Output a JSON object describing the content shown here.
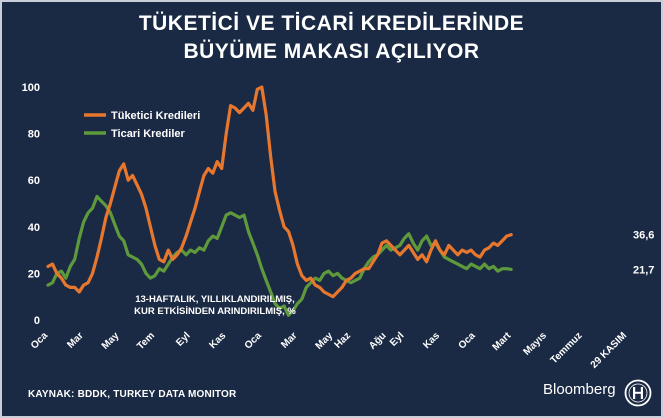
{
  "title_line1": "TÜKETİCİ VE TİCARİ KREDİLERİNDE",
  "title_line2": "BÜYÜME MAKASI AÇILIYOR",
  "source": "KAYNAK: BDDK, TURKEY DATA MONITOR",
  "brand": "Bloomberg",
  "colors": {
    "background": "#1b2a44",
    "consumer": "#e8772e",
    "commercial": "#5e9a3c",
    "text": "#ffffff"
  },
  "chart_data": {
    "type": "line",
    "title": "TÜKETİCİ VE TİCARİ KREDİLERİNDE BÜYÜME MAKASI AÇILIYOR",
    "ylim": [
      0,
      100
    ],
    "y_ticks": [
      0,
      20,
      40,
      60,
      80,
      100
    ],
    "x_ticks": [
      "Oca",
      "Mar",
      "May",
      "Tem",
      "Eyl",
      "Kas",
      "Oca",
      "Mar",
      "May",
      "Haz",
      "Ağu",
      "Eyl",
      "Kas",
      "Oca",
      "Mart",
      "Mayıs",
      "Temmuz",
      "29 KASIM"
    ],
    "x_tick_positions": [
      0,
      8,
      16,
      24,
      32,
      40,
      48,
      56,
      64,
      68,
      76,
      80,
      88,
      96,
      104,
      112,
      120,
      130
    ],
    "grid": false,
    "legend_position": "top-left",
    "annotation": [
      "13-HAFTALIK, YILLIKLANDIRILMIŞ,",
      "KUR ETKİSİNDEN ARINDIRILMIŞ, %"
    ],
    "series": [
      {
        "name": "Tüketici Kredileri",
        "color": "#e8772e",
        "end_label": "36,6",
        "points": [
          [
            0,
            23
          ],
          [
            1,
            24
          ],
          [
            2,
            20
          ],
          [
            3,
            18
          ],
          [
            4,
            15
          ],
          [
            5,
            14
          ],
          [
            6,
            14
          ],
          [
            7,
            12
          ],
          [
            8,
            15
          ],
          [
            9,
            16
          ],
          [
            10,
            20
          ],
          [
            11,
            27
          ],
          [
            12,
            35
          ],
          [
            13,
            44
          ],
          [
            14,
            50
          ],
          [
            15,
            57
          ],
          [
            16,
            64
          ],
          [
            17,
            67
          ],
          [
            18,
            60
          ],
          [
            19,
            62
          ],
          [
            20,
            58
          ],
          [
            21,
            54
          ],
          [
            22,
            48
          ],
          [
            23,
            40
          ],
          [
            24,
            32
          ],
          [
            25,
            26
          ],
          [
            26,
            25
          ],
          [
            27,
            30
          ],
          [
            28,
            26
          ],
          [
            29,
            28
          ],
          [
            30,
            31
          ],
          [
            31,
            36
          ],
          [
            32,
            42
          ],
          [
            33,
            48
          ],
          [
            34,
            55
          ],
          [
            35,
            62
          ],
          [
            36,
            65
          ],
          [
            37,
            63
          ],
          [
            38,
            68
          ],
          [
            39,
            65
          ],
          [
            40,
            80
          ],
          [
            41,
            92
          ],
          [
            42,
            91
          ],
          [
            43,
            89
          ],
          [
            44,
            91
          ],
          [
            45,
            93
          ],
          [
            46,
            90
          ],
          [
            47,
            99
          ],
          [
            48,
            100
          ],
          [
            49,
            88
          ],
          [
            50,
            70
          ],
          [
            51,
            55
          ],
          [
            52,
            47
          ],
          [
            53,
            40
          ],
          [
            54,
            38
          ],
          [
            55,
            32
          ],
          [
            56,
            24
          ],
          [
            57,
            19
          ],
          [
            58,
            17
          ],
          [
            59,
            18
          ],
          [
            60,
            15
          ],
          [
            61,
            14
          ],
          [
            62,
            12
          ],
          [
            63,
            11
          ],
          [
            64,
            10
          ],
          [
            65,
            12
          ],
          [
            66,
            14
          ],
          [
            67,
            17
          ],
          [
            68,
            18
          ],
          [
            69,
            20
          ],
          [
            70,
            21
          ],
          [
            71,
            22
          ],
          [
            72,
            22
          ],
          [
            73,
            25
          ],
          [
            74,
            28
          ],
          [
            75,
            33
          ],
          [
            76,
            34
          ],
          [
            77,
            32
          ],
          [
            78,
            30
          ],
          [
            79,
            28
          ],
          [
            80,
            30
          ],
          [
            81,
            32
          ],
          [
            82,
            29
          ],
          [
            83,
            26
          ],
          [
            84,
            28
          ],
          [
            85,
            25
          ],
          [
            86,
            30
          ],
          [
            87,
            34
          ],
          [
            88,
            30
          ],
          [
            89,
            28
          ],
          [
            90,
            32
          ],
          [
            91,
            30
          ],
          [
            92,
            28
          ],
          [
            93,
            30
          ],
          [
            94,
            29
          ],
          [
            95,
            30
          ],
          [
            96,
            28
          ],
          [
            97,
            27
          ],
          [
            98,
            30
          ],
          [
            99,
            31
          ],
          [
            100,
            33
          ],
          [
            101,
            32
          ],
          [
            102,
            34
          ],
          [
            103,
            36
          ],
          [
            104,
            36.6
          ]
        ]
      },
      {
        "name": "Ticari Krediler",
        "color": "#5e9a3c",
        "end_label": "21,7",
        "points": [
          [
            0,
            15
          ],
          [
            1,
            16
          ],
          [
            2,
            20
          ],
          [
            3,
            21
          ],
          [
            4,
            18
          ],
          [
            5,
            23
          ],
          [
            6,
            26
          ],
          [
            7,
            35
          ],
          [
            8,
            42
          ],
          [
            9,
            46
          ],
          [
            10,
            48
          ],
          [
            11,
            53
          ],
          [
            12,
            51
          ],
          [
            13,
            49
          ],
          [
            14,
            46
          ],
          [
            15,
            41
          ],
          [
            16,
            36
          ],
          [
            17,
            34
          ],
          [
            18,
            28
          ],
          [
            19,
            27
          ],
          [
            20,
            26
          ],
          [
            21,
            24
          ],
          [
            22,
            20
          ],
          [
            23,
            18
          ],
          [
            24,
            19
          ],
          [
            25,
            22
          ],
          [
            26,
            21
          ],
          [
            27,
            24
          ],
          [
            28,
            27
          ],
          [
            29,
            29
          ],
          [
            30,
            30
          ],
          [
            31,
            28
          ],
          [
            32,
            30
          ],
          [
            33,
            29
          ],
          [
            34,
            31
          ],
          [
            35,
            30
          ],
          [
            36,
            34
          ],
          [
            37,
            36
          ],
          [
            38,
            35
          ],
          [
            39,
            40
          ],
          [
            40,
            45
          ],
          [
            41,
            46
          ],
          [
            42,
            45
          ],
          [
            43,
            44
          ],
          [
            44,
            45
          ],
          [
            45,
            38
          ],
          [
            46,
            33
          ],
          [
            47,
            28
          ],
          [
            48,
            22
          ],
          [
            49,
            17
          ],
          [
            50,
            12
          ],
          [
            51,
            7
          ],
          [
            52,
            5
          ],
          [
            53,
            6
          ],
          [
            54,
            2
          ],
          [
            55,
            4
          ],
          [
            56,
            7
          ],
          [
            57,
            9
          ],
          [
            58,
            14
          ],
          [
            59,
            16
          ],
          [
            60,
            18
          ],
          [
            61,
            17
          ],
          [
            62,
            20
          ],
          [
            63,
            21
          ],
          [
            64,
            19
          ],
          [
            65,
            20
          ],
          [
            66,
            18
          ],
          [
            67,
            17
          ],
          [
            68,
            16
          ],
          [
            69,
            17
          ],
          [
            70,
            18
          ],
          [
            71,
            22
          ],
          [
            72,
            25
          ],
          [
            73,
            27
          ],
          [
            74,
            28
          ],
          [
            75,
            30
          ],
          [
            76,
            32
          ],
          [
            77,
            30
          ],
          [
            78,
            31
          ],
          [
            79,
            32
          ],
          [
            80,
            35
          ],
          [
            81,
            37
          ],
          [
            82,
            33
          ],
          [
            83,
            30
          ],
          [
            84,
            34
          ],
          [
            85,
            36
          ],
          [
            86,
            32
          ],
          [
            87,
            33
          ],
          [
            88,
            30
          ],
          [
            89,
            27
          ],
          [
            90,
            26
          ],
          [
            91,
            25
          ],
          [
            92,
            24
          ],
          [
            93,
            23
          ],
          [
            94,
            22
          ],
          [
            95,
            24
          ],
          [
            96,
            23
          ],
          [
            97,
            22
          ],
          [
            98,
            24
          ],
          [
            99,
            22
          ],
          [
            100,
            23
          ],
          [
            101,
            21
          ],
          [
            102,
            22
          ],
          [
            103,
            22
          ],
          [
            104,
            21.7
          ]
        ]
      }
    ]
  }
}
